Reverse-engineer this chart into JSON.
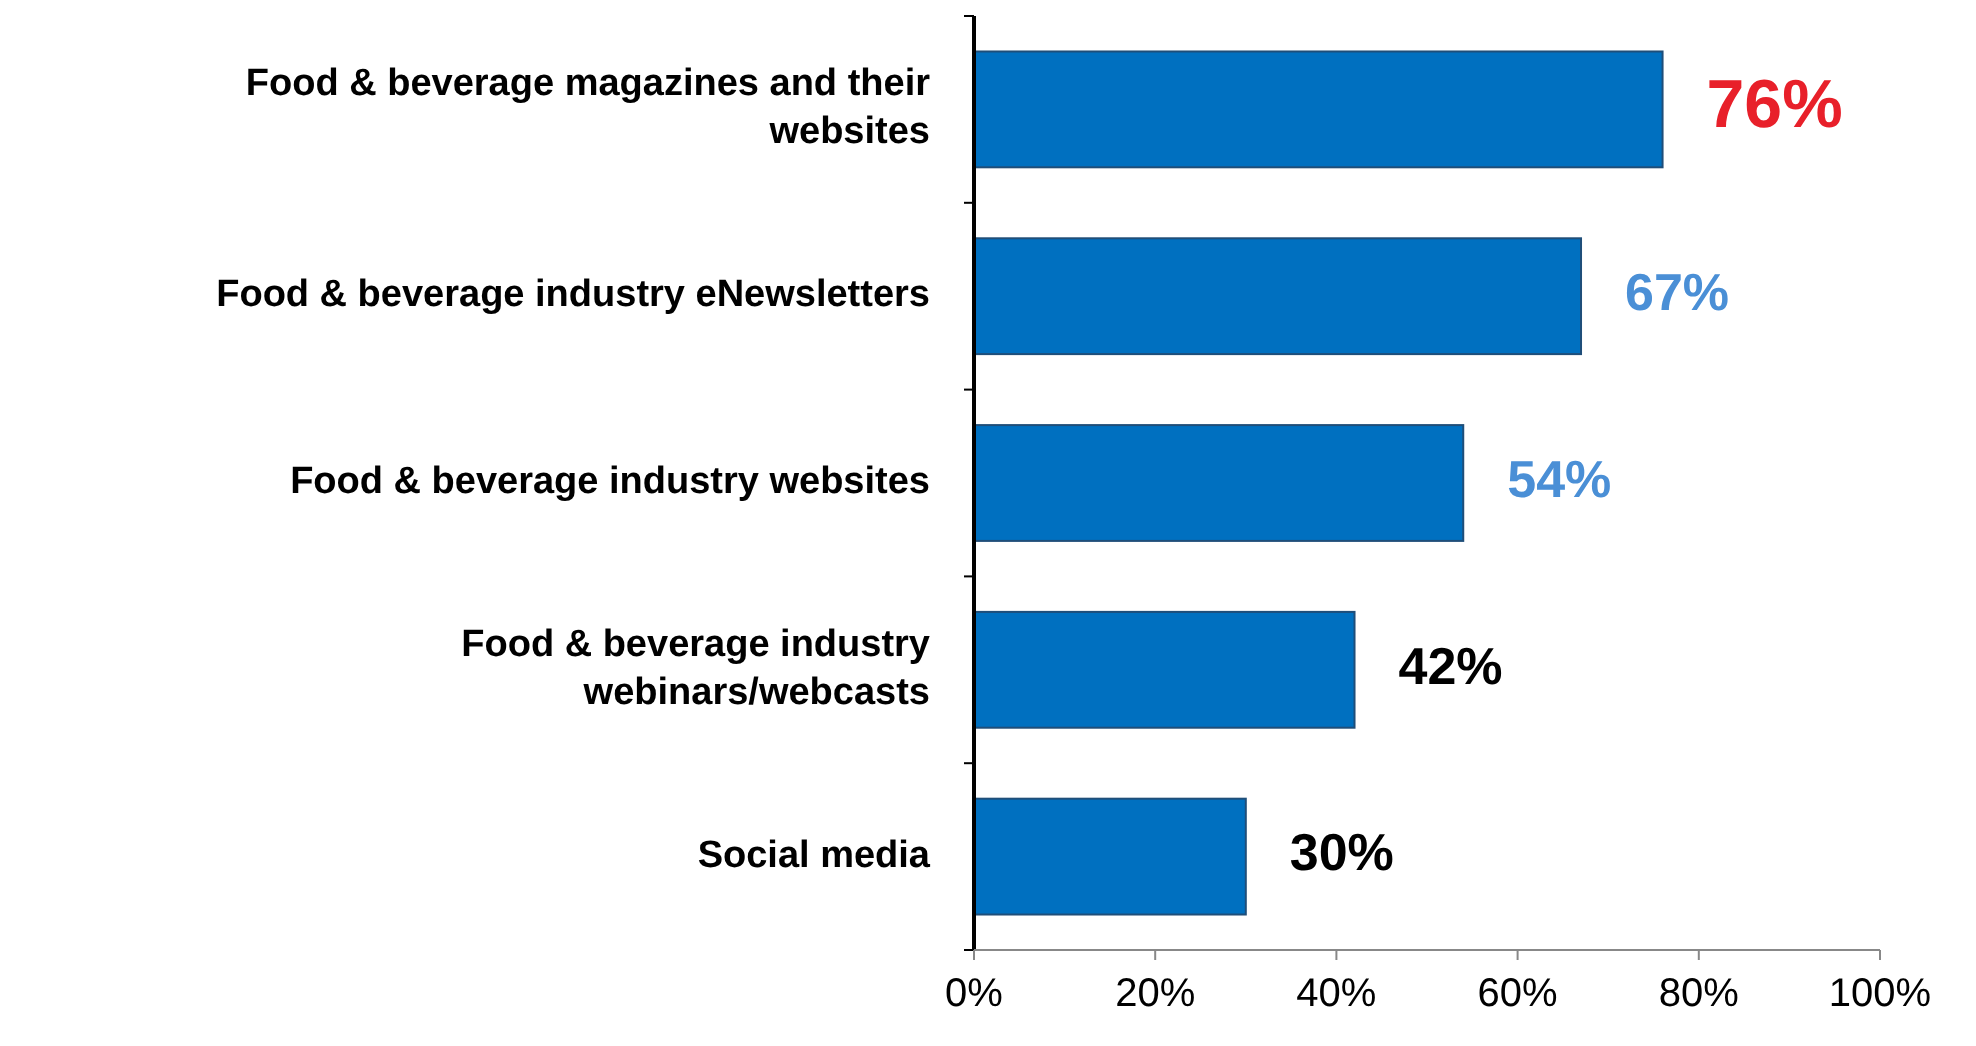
{
  "chart_data": {
    "type": "bar",
    "orientation": "horizontal",
    "categories": [
      "Food & beverage magazines and their websites",
      "Food & beverage industry eNewsletters",
      "Food & beverage industry websites",
      "Food & beverage industry webinars/webcasts",
      "Social media"
    ],
    "values": [
      76,
      67,
      54,
      42,
      30
    ],
    "color": "#0070c0",
    "value_labels": [
      "76%",
      "67%",
      "54%",
      "42%",
      "30%"
    ],
    "xlim": [
      0,
      100
    ],
    "xticks": [
      {
        "value": 0,
        "label": "0%"
      },
      {
        "value": 20,
        "label": "20%"
      },
      {
        "value": 40,
        "label": "40%"
      },
      {
        "value": 60,
        "label": "60%"
      },
      {
        "value": 80,
        "label": "80%"
      },
      {
        "value": 100,
        "label": "100%"
      }
    ],
    "grid": false
  }
}
